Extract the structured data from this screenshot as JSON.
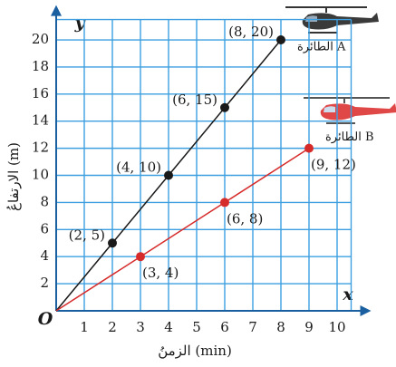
{
  "chart_data": {
    "type": "line",
    "x_label": "x",
    "y_label": "y",
    "origin_label": "O",
    "x_title": "الزمنُ (min)",
    "y_title": "الارتفاعُ (m)",
    "xlim": [
      0,
      10.5
    ],
    "ylim": [
      0,
      21.5
    ],
    "xticks": [
      1,
      2,
      3,
      4,
      5,
      6,
      7,
      8,
      9,
      10
    ],
    "yticks": [
      2,
      4,
      6,
      8,
      10,
      12,
      14,
      16,
      18,
      20
    ],
    "grid": true,
    "grid_color": "#3d9fe0",
    "series": [
      {
        "name": "الطائرة A",
        "color": "#1a1a1a",
        "x": [
          0,
          2,
          4,
          6,
          8
        ],
        "values": [
          0,
          5,
          10,
          15,
          20
        ],
        "point_labels": [
          null,
          "(2, 5)",
          "(4, 10)",
          "(6, 15)",
          "(8, 20)"
        ]
      },
      {
        "name": "الطائرة B",
        "color": "#d62b2b",
        "x": [
          0,
          3,
          6,
          9
        ],
        "values": [
          0,
          4,
          8,
          12
        ],
        "point_labels": [
          null,
          "(3, 4)",
          "(6, 8)",
          "(9, 12)"
        ]
      }
    ]
  }
}
